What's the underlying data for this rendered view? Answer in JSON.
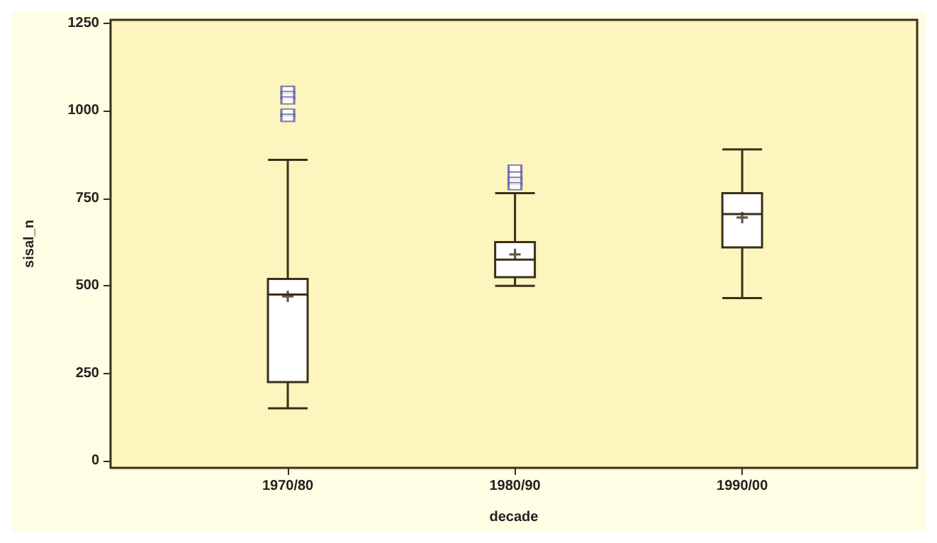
{
  "chart_data": {
    "type": "box",
    "xlabel": "decade",
    "ylabel": "sisal_n",
    "categories": [
      "1970/80",
      "1980/90",
      "1990/00"
    ],
    "series": [
      {
        "color": "#3b2f1a",
        "boxes": [
          {
            "low": 150,
            "q1": 225,
            "median": 475,
            "q3": 520,
            "high": 860,
            "mean": 470,
            "outliers": [
              1060,
              1045,
              1030,
              995,
              980
            ]
          },
          {
            "low": 500,
            "q1": 525,
            "median": 575,
            "q3": 625,
            "high": 765,
            "mean": 590,
            "outliers": [
              835,
              815,
              800,
              785
            ]
          },
          {
            "low": 465,
            "q1": 610,
            "median": 705,
            "q3": 765,
            "high": 890,
            "mean": 695
          }
        ]
      }
    ],
    "ylim": [
      -20,
      1260
    ],
    "yticks": [
      0,
      250,
      500,
      750,
      1000,
      1250
    ],
    "grid": false,
    "marker": "square"
  }
}
